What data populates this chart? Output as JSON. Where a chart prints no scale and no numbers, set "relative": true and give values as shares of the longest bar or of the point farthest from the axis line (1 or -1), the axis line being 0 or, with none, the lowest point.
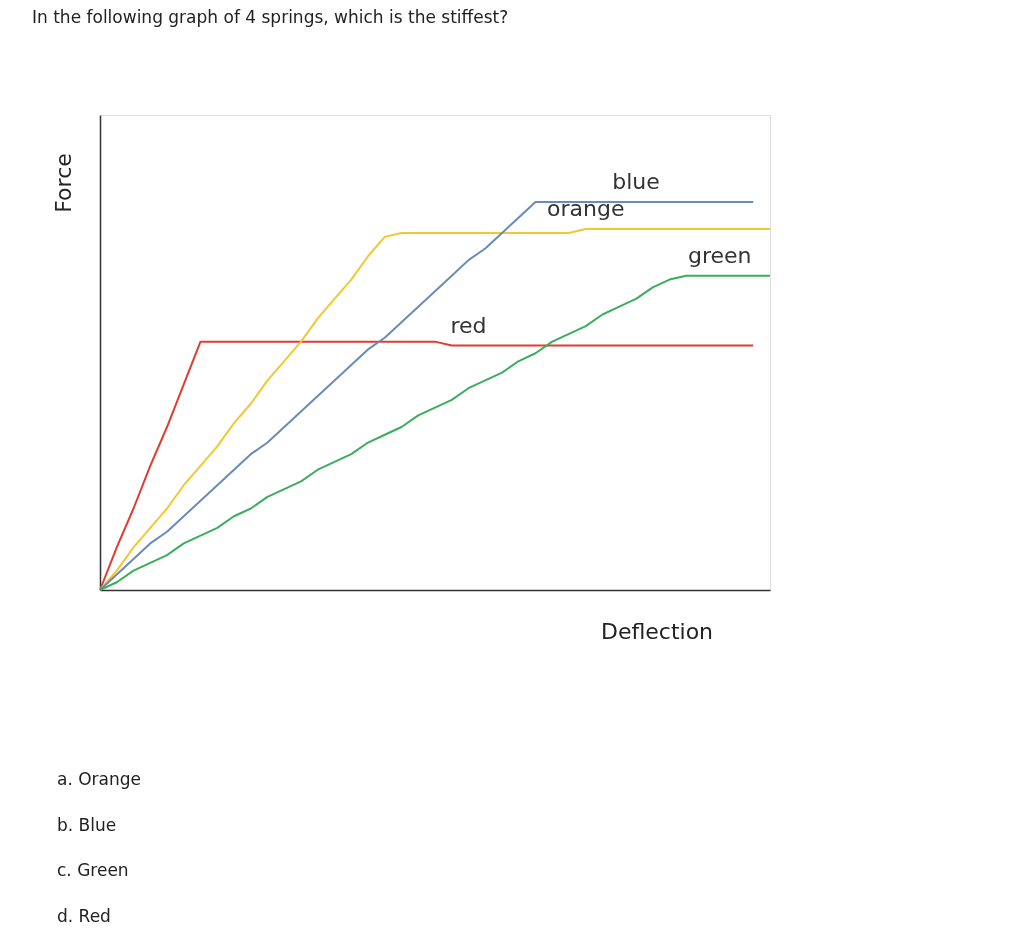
{
  "chart_data": {
    "type": "line",
    "title": "In the following graph of 4 springs, which is the stiffest?",
    "xlabel": "Deflection",
    "ylabel": "Force",
    "relative": true,
    "categories": [
      null,
      null,
      null,
      null,
      null,
      null,
      null,
      null,
      null,
      null,
      null,
      null,
      null,
      null,
      null,
      null,
      null,
      null,
      null,
      null,
      null,
      null,
      null,
      null,
      null,
      null,
      null,
      null,
      null,
      null,
      null,
      null,
      null,
      null,
      null,
      null,
      null,
      null,
      null,
      null,
      null
    ],
    "series": [
      {
        "name": "red",
        "color": "#e03c31",
        "values": [
          0,
          0.11,
          0.21,
          0.32,
          0.42,
          0.53,
          0.64,
          0.64,
          0.64,
          0.64,
          0.64,
          0.64,
          0.64,
          0.64,
          0.64,
          0.64,
          0.64,
          0.64,
          0.64,
          0.64,
          0.64,
          0.63,
          0.63,
          0.63,
          0.63,
          0.63,
          0.63,
          0.63,
          0.63,
          0.63,
          0.63,
          0.63,
          0.63,
          0.63,
          0.63,
          0.63,
          0.63,
          0.63,
          0.63,
          0.63,
          null
        ]
      },
      {
        "name": "orange",
        "color": "#f2c830",
        "values": [
          0,
          0.05,
          0.11,
          0.16,
          0.21,
          0.27,
          0.32,
          0.37,
          0.43,
          0.48,
          0.54,
          0.59,
          0.64,
          0.7,
          0.75,
          0.8,
          0.86,
          0.91,
          0.92,
          0.92,
          0.92,
          0.92,
          0.92,
          0.92,
          0.92,
          0.92,
          0.92,
          0.92,
          0.92,
          0.93,
          0.93,
          0.93,
          0.93,
          0.93,
          0.93,
          0.93,
          0.93,
          0.93,
          0.93,
          0.93,
          0.93
        ]
      },
      {
        "name": "blue",
        "color": "#6a8bb8",
        "values": [
          0,
          0.04,
          0.08,
          0.12,
          0.15,
          0.19,
          0.23,
          0.27,
          0.31,
          0.35,
          0.38,
          0.42,
          0.46,
          0.5,
          0.54,
          0.58,
          0.62,
          0.65,
          0.69,
          0.73,
          0.77,
          0.81,
          0.85,
          0.88,
          0.92,
          0.96,
          1.0,
          1.0,
          1.0,
          1.0,
          1.0,
          1.0,
          1.0,
          1.0,
          1.0,
          1.0,
          1.0,
          1.0,
          1.0,
          1.0,
          null
        ]
      },
      {
        "name": "green",
        "color": "#3aae5c",
        "values": [
          0,
          0.02,
          0.05,
          0.07,
          0.09,
          0.12,
          0.14,
          0.16,
          0.19,
          0.21,
          0.24,
          0.26,
          0.28,
          0.31,
          0.33,
          0.35,
          0.38,
          0.4,
          0.42,
          0.45,
          0.47,
          0.49,
          0.52,
          0.54,
          0.56,
          0.59,
          0.61,
          0.64,
          0.66,
          0.68,
          0.71,
          0.73,
          0.75,
          0.78,
          0.8,
          0.81,
          0.81,
          0.81,
          0.81,
          0.81,
          0.81
        ]
      }
    ],
    "annotations": [
      "a. Orange",
      "b. Blue",
      "c. Green",
      "d. Red"
    ],
    "grid": false,
    "legend": false,
    "marker": "none",
    "line_style": "solid"
  }
}
